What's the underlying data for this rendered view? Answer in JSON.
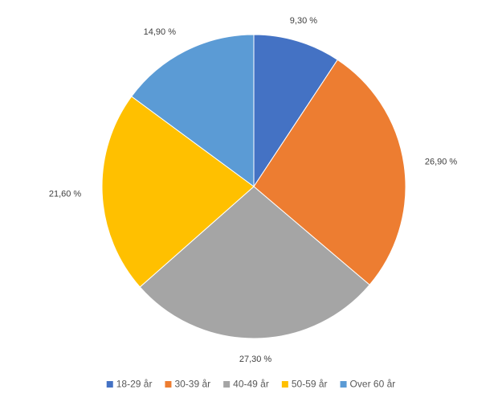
{
  "chart_data": {
    "type": "pie",
    "categories": [
      "18-29 år",
      "30-39 år",
      "40-49 år",
      "50-59 år",
      "Over 60 år"
    ],
    "values": [
      9.3,
      26.9,
      27.3,
      21.6,
      14.9
    ],
    "value_labels": [
      "9,30 %",
      "26,90 %",
      "27,30 %",
      "21,60 %",
      "14,90 %"
    ],
    "colors": [
      "#4472c4",
      "#ed7d31",
      "#a5a5a5",
      "#ffc000",
      "#5b9bd5"
    ],
    "legend": "bottom"
  }
}
